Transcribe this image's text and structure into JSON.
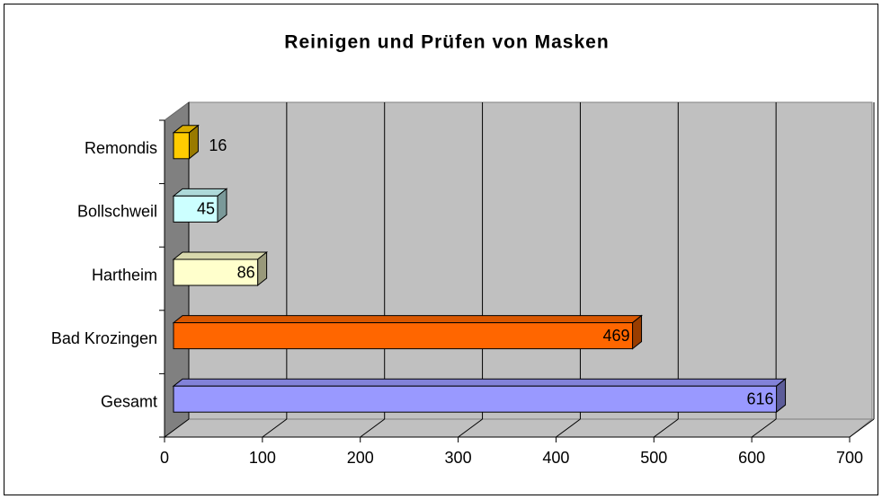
{
  "chart_data": {
    "type": "bar3d_horizontal",
    "title": "Reinigen und Prüfen von Masken",
    "categories": [
      "Remondis",
      "Bollschweil",
      "Hartheim",
      "Bad Krozingen",
      "Gesamt"
    ],
    "values": [
      16,
      45,
      86,
      469,
      616
    ],
    "colors": [
      "#FFCC00",
      "#CCFFFF",
      "#FFFFCC",
      "#FF6600",
      "#9999FF"
    ],
    "xlim": [
      0,
      700
    ],
    "xticks": [
      0,
      100,
      200,
      300,
      400,
      500,
      600,
      700
    ],
    "grid": true
  }
}
